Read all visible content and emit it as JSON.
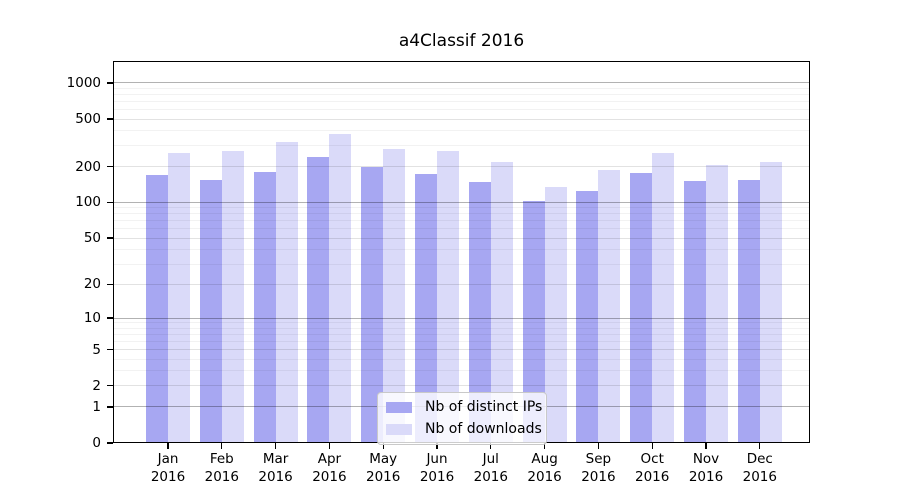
{
  "title": "a4Classif 2016",
  "chart_data": {
    "type": "bar",
    "title": "a4Classif 2016",
    "x_categories": [
      "Jan",
      "Feb",
      "Mar",
      "Apr",
      "May",
      "Jun",
      "Jul",
      "Aug",
      "Sep",
      "Oct",
      "Nov",
      "Dec"
    ],
    "x_year_suffix": "2016",
    "series": [
      {
        "name": "Nb of distinct IPs",
        "color": "#a7a7f2",
        "values": [
          170,
          155,
          180,
          240,
          197,
          172,
          148,
          103,
          125,
          176,
          152,
          155
        ]
      },
      {
        "name": "Nb of downloads",
        "color": "#dadaf9",
        "values": [
          258,
          268,
          320,
          374,
          283,
          268,
          218,
          136,
          186,
          258,
          208,
          218
        ]
      }
    ],
    "y_scale": "log1p",
    "ylim": [
      0,
      1524
    ],
    "y_ticks": [
      0,
      1,
      2,
      5,
      10,
      20,
      50,
      100,
      200,
      500,
      1000
    ],
    "y_gridlines": {
      "decade": [
        1,
        10,
        100,
        1000
      ],
      "labeled": [
        2,
        5,
        20,
        50,
        200,
        500
      ],
      "minor": [
        3,
        4,
        6,
        7,
        8,
        9,
        30,
        40,
        60,
        70,
        80,
        90,
        300,
        400,
        600,
        700,
        800,
        900
      ]
    },
    "grid": true,
    "legend_position": "lower center"
  }
}
